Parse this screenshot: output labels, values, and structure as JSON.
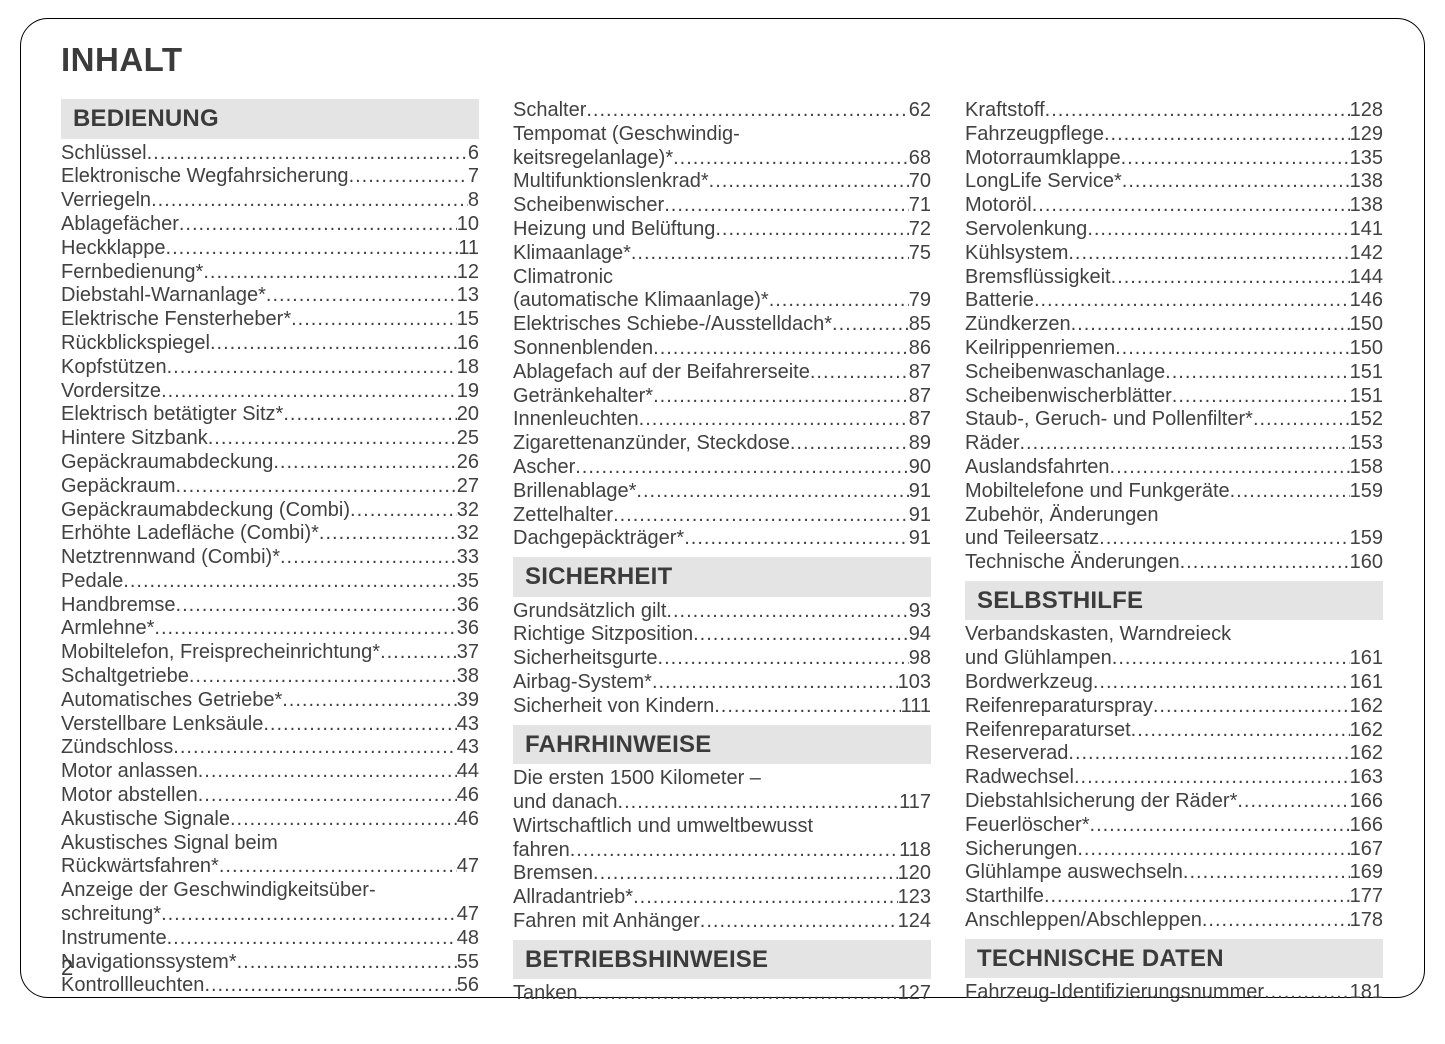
{
  "title": "INHALT",
  "page_number": "2",
  "colors": {
    "text": "#414141",
    "header_bg": "#e4e4e4",
    "border": "#000000",
    "page_bg": "#ffffff"
  },
  "columns": [
    {
      "blocks": [
        {
          "type": "header",
          "text": "BEDIENUNG"
        },
        {
          "type": "entry",
          "label": "Schlüssel",
          "page": "6"
        },
        {
          "type": "entry",
          "label": "Elektronische Wegfahrsicherung",
          "page": "7"
        },
        {
          "type": "entry",
          "label": "Verriegeln",
          "page": "8"
        },
        {
          "type": "entry",
          "label": "Ablagefächer",
          "page": "10"
        },
        {
          "type": "entry",
          "label": "Heckklappe",
          "page": "11"
        },
        {
          "type": "entry",
          "label": "Fernbedienung*",
          "page": "12"
        },
        {
          "type": "entry",
          "label": "Diebstahl-Warnanlage*",
          "page": "13"
        },
        {
          "type": "entry",
          "label": "Elektrische Fensterheber*",
          "page": "15"
        },
        {
          "type": "entry",
          "label": "Rückblickspiegel",
          "page": "16"
        },
        {
          "type": "entry",
          "label": "Kopfstützen",
          "page": "18"
        },
        {
          "type": "entry",
          "label": "Vordersitze",
          "page": "19"
        },
        {
          "type": "entry",
          "label": "Elektrisch betätigter Sitz*",
          "page": "20"
        },
        {
          "type": "entry",
          "label": "Hintere Sitzbank",
          "page": "25"
        },
        {
          "type": "entry",
          "label": "Gepäckraumabdeckung",
          "page": "26"
        },
        {
          "type": "entry",
          "label": "Gepäckraum",
          "page": "27"
        },
        {
          "type": "entry",
          "label": "Gepäckraumabdeckung (Combi)",
          "page": "32"
        },
        {
          "type": "entry",
          "label": "Erhöhte Ladefläche (Combi)*",
          "page": "32"
        },
        {
          "type": "entry",
          "label": "Netztrennwand (Combi)*",
          "page": "33"
        },
        {
          "type": "entry",
          "label": "Pedale",
          "page": "35"
        },
        {
          "type": "entry",
          "label": "Handbremse",
          "page": "36"
        },
        {
          "type": "entry",
          "label": "Armlehne*",
          "page": "36"
        },
        {
          "type": "entry",
          "label": "Mobiltelefon, Freisprecheinrichtung*",
          "page": "37"
        },
        {
          "type": "entry",
          "label": "Schaltgetriebe",
          "page": "38"
        },
        {
          "type": "entry",
          "label": "Automatisches Getriebe*",
          "page": "39"
        },
        {
          "type": "entry",
          "label": "Verstellbare Lenksäule",
          "page": "43"
        },
        {
          "type": "entry",
          "label": "Zündschloss",
          "page": "43"
        },
        {
          "type": "entry",
          "label": "Motor anlassen",
          "page": "44"
        },
        {
          "type": "entry",
          "label": "Motor abstellen",
          "page": "46"
        },
        {
          "type": "entry",
          "label": "Akustische Signale",
          "page": "46"
        },
        {
          "type": "cont",
          "text": "Akustisches Signal beim"
        },
        {
          "type": "entry",
          "label": "Rückwärtsfahren*",
          "page": "47"
        },
        {
          "type": "cont",
          "text": "Anzeige der Geschwindigkeitsüber-"
        },
        {
          "type": "entry",
          "label": "schreitung*",
          "page": "47"
        },
        {
          "type": "entry",
          "label": "Instrumente",
          "page": "48"
        },
        {
          "type": "entry",
          "label": "Navigationssystem*",
          "page": "55"
        },
        {
          "type": "entry",
          "label": "Kontrollleuchten",
          "page": "56"
        }
      ]
    },
    {
      "blocks": [
        {
          "type": "entry",
          "label": "Schalter",
          "page": "62"
        },
        {
          "type": "cont",
          "text": "Tempomat (Geschwindig-"
        },
        {
          "type": "entry",
          "label": "keitsregelanlage)*",
          "page": "68"
        },
        {
          "type": "entry",
          "label": "Multifunktionslenkrad*",
          "page": "70"
        },
        {
          "type": "entry",
          "label": "Scheibenwischer",
          "page": "71"
        },
        {
          "type": "entry",
          "label": "Heizung und Belüftung",
          "page": "72"
        },
        {
          "type": "entry",
          "label": "Klimaanlage*",
          "page": "75"
        },
        {
          "type": "cont",
          "text": "Climatronic"
        },
        {
          "type": "entry",
          "label": "(automatische Klimaanlage)*",
          "page": "79"
        },
        {
          "type": "entry",
          "label": "Elektrisches Schiebe-/Ausstelldach*",
          "page": "85"
        },
        {
          "type": "entry",
          "label": "Sonnenblenden",
          "page": "86"
        },
        {
          "type": "entry",
          "label": "Ablagefach auf der Beifahrerseite",
          "page": "87"
        },
        {
          "type": "entry",
          "label": "Getränkehalter*",
          "page": "87"
        },
        {
          "type": "entry",
          "label": "Innenleuchten",
          "page": "87"
        },
        {
          "type": "entry",
          "label": "Zigarettenanzünder, Steckdose",
          "page": "89"
        },
        {
          "type": "entry",
          "label": "Ascher",
          "page": "90"
        },
        {
          "type": "entry",
          "label": "Brillenablage*",
          "page": "91"
        },
        {
          "type": "entry",
          "label": "Zettelhalter",
          "page": "91"
        },
        {
          "type": "entry",
          "label": "Dachgepäckträger*",
          "page": "91"
        },
        {
          "type": "header",
          "text": "SICHERHEIT"
        },
        {
          "type": "entry",
          "label": "Grundsätzlich gilt",
          "page": "93"
        },
        {
          "type": "entry",
          "label": "Richtige Sitzposition",
          "page": "94"
        },
        {
          "type": "entry",
          "label": "Sicherheitsgurte",
          "page": "98"
        },
        {
          "type": "entry",
          "label": "Airbag-System*",
          "page": "103"
        },
        {
          "type": "entry",
          "label": "Sicherheit von Kindern",
          "page": " 111"
        },
        {
          "type": "header",
          "text": "FAHRHINWEISE"
        },
        {
          "type": "cont",
          "text": "Die ersten 1500 Kilometer –"
        },
        {
          "type": "entry",
          "label": "und danach",
          "page": "117"
        },
        {
          "type": "cont",
          "text": "Wirtschaftlich und umweltbewusst"
        },
        {
          "type": "entry",
          "label": "fahren",
          "page": "118"
        },
        {
          "type": "entry",
          "label": "Bremsen",
          "page": "120"
        },
        {
          "type": "entry",
          "label": "Allradantrieb*",
          "page": "123"
        },
        {
          "type": "entry",
          "label": "Fahren mit Anhänger",
          "page": "124"
        },
        {
          "type": "header",
          "text": "BETRIEBSHINWEISE"
        },
        {
          "type": "entry",
          "label": "Tanken",
          "page": "127"
        }
      ]
    },
    {
      "blocks": [
        {
          "type": "entry",
          "label": "Kraftstoff",
          "page": "128"
        },
        {
          "type": "entry",
          "label": "Fahrzeugpflege",
          "page": "129"
        },
        {
          "type": "entry",
          "label": "Motorraumklappe",
          "page": "135"
        },
        {
          "type": "entry",
          "label": "LongLife Service*",
          "page": "138"
        },
        {
          "type": "entry",
          "label": "Motoröl",
          "page": "138"
        },
        {
          "type": "entry",
          "label": "Servolenkung",
          "page": "141"
        },
        {
          "type": "entry",
          "label": "Kühlsystem",
          "page": "142"
        },
        {
          "type": "entry",
          "label": "Bremsflüssigkeit",
          "page": "144"
        },
        {
          "type": "entry",
          "label": "Batterie",
          "page": "146"
        },
        {
          "type": "entry",
          "label": "Zündkerzen",
          "page": "150"
        },
        {
          "type": "entry",
          "label": "Keilrippenriemen",
          "page": "150"
        },
        {
          "type": "entry",
          "label": "Scheibenwaschanlage",
          "page": "151"
        },
        {
          "type": "entry",
          "label": "Scheibenwischerblätter",
          "page": "151"
        },
        {
          "type": "entry",
          "label": "Staub-, Geruch- und Pollenfilter*",
          "page": "152"
        },
        {
          "type": "entry",
          "label": "Räder",
          "page": "153"
        },
        {
          "type": "entry",
          "label": "Auslandsfahrten",
          "page": "158"
        },
        {
          "type": "entry",
          "label": "Mobiltelefone und Funkgeräte",
          "page": "159"
        },
        {
          "type": "cont",
          "text": "Zubehör, Änderungen"
        },
        {
          "type": "entry",
          "label": "und Teileersatz",
          "page": "159"
        },
        {
          "type": "entry",
          "label": "Technische Änderungen",
          "page": "160"
        },
        {
          "type": "header",
          "text": "SELBSTHILFE"
        },
        {
          "type": "cont",
          "text": "Verbandskasten, Warndreieck"
        },
        {
          "type": "entry",
          "label": "und Glühlampen",
          "page": "161"
        },
        {
          "type": "entry",
          "label": "Bordwerkzeug",
          "page": "161"
        },
        {
          "type": "entry",
          "label": "Reifenreparaturspray",
          "page": "162"
        },
        {
          "type": "entry",
          "label": "Reifenreparaturset",
          "page": "162"
        },
        {
          "type": "entry",
          "label": "Reserverad",
          "page": "162"
        },
        {
          "type": "entry",
          "label": "Radwechsel",
          "page": "163"
        },
        {
          "type": "entry",
          "label": "Diebstahlsicherung der Räder*",
          "page": "166"
        },
        {
          "type": "entry",
          "label": "Feuerlöscher*",
          "page": "166"
        },
        {
          "type": "entry",
          "label": "Sicherungen",
          "page": "167"
        },
        {
          "type": "entry",
          "label": "Glühlampe auswechseln",
          "page": "169"
        },
        {
          "type": "entry",
          "label": "Starthilfe",
          "page": "177"
        },
        {
          "type": "entry",
          "label": "Anschleppen/Abschleppen",
          "page": "178"
        },
        {
          "type": "header",
          "text": "TECHNISCHE DATEN"
        },
        {
          "type": "entry",
          "label": "Fahrzeug-Identifizierungsnummer",
          "page": "181"
        }
      ]
    }
  ]
}
